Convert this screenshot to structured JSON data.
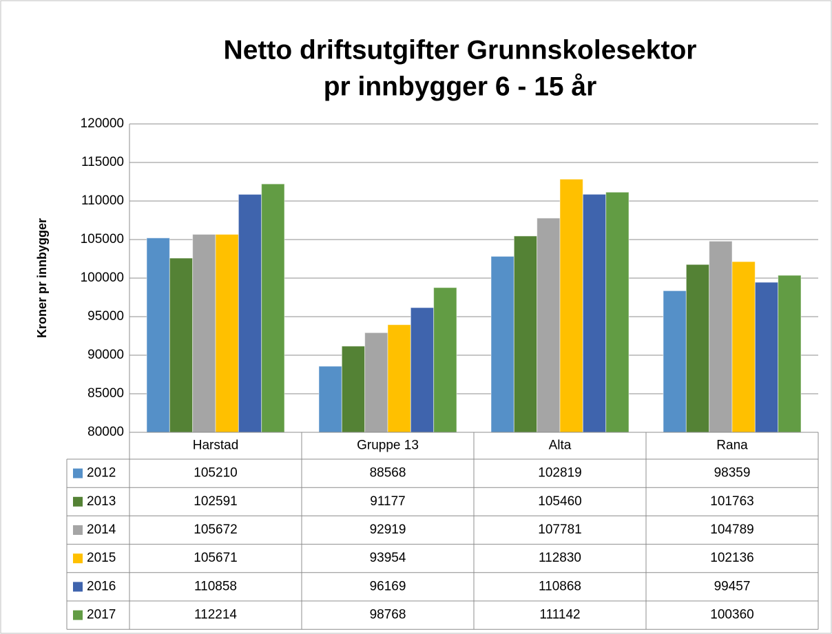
{
  "chart_data": {
    "type": "bar",
    "title": [
      "Netto driftsutgifter Grunnskolesektor",
      "pr innbygger 6 - 15 år"
    ],
    "y_label": "Kroner pr innbygger",
    "categories": [
      "Harstad",
      "Gruppe 13",
      "Alta",
      "Rana"
    ],
    "series": [
      {
        "name": "2012",
        "color": "#5590c8",
        "values": [
          105210,
          88568,
          102819,
          98359
        ]
      },
      {
        "name": "2013",
        "color": "#548235",
        "values": [
          102591,
          91177,
          105460,
          101763
        ]
      },
      {
        "name": "2014",
        "color": "#a5a5a5",
        "values": [
          105672,
          92919,
          107781,
          104789
        ]
      },
      {
        "name": "2015",
        "color": "#ffc000",
        "values": [
          105671,
          93954,
          112830,
          102136
        ]
      },
      {
        "name": "2016",
        "color": "#3f64ad",
        "values": [
          110858,
          96169,
          110868,
          99457
        ]
      },
      {
        "name": "2017",
        "color": "#629c44",
        "values": [
          112214,
          98768,
          111142,
          100360
        ]
      }
    ],
    "ylim": [
      80000,
      120000
    ],
    "yticks": [
      80000,
      85000,
      90000,
      95000,
      100000,
      105000,
      110000,
      115000,
      120000
    ],
    "grid": true,
    "data_table": true
  }
}
